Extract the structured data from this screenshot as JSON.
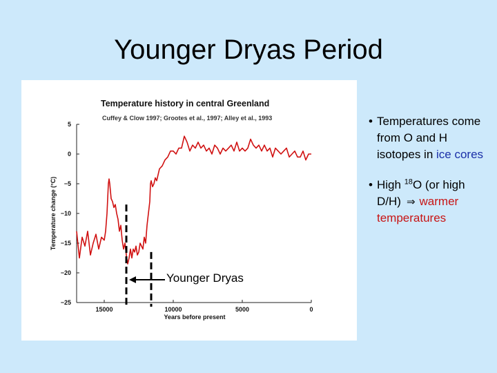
{
  "slide": {
    "title": "Younger Dryas Period"
  },
  "bullets": {
    "b1_pre": "Temperatures come from O and H isotopes in ",
    "b1_highlight": "ice cores",
    "b2_pre": "High ",
    "b2_sup": "18",
    "b2_mid": "O (or high D/H)",
    "b2_symbol": "⇒",
    "b2_highlight": "warmer temperatures",
    "bullet_char": "•"
  },
  "annotation": {
    "label": "Younger Dryas"
  },
  "colors": {
    "background": "#cde9fb",
    "series": "#d01010",
    "highlight_blue": "#1a2fa8",
    "highlight_red": "#c81414"
  },
  "chart_data": {
    "type": "line",
    "title": "Temperature history in central Greenland",
    "subtitle": "Cuffey & Clow 1997; Grootes et al., 1997; Alley et al., 1993",
    "xlabel": "Years before present",
    "ylabel": "Temperature change (°C)",
    "xlim": [
      17000,
      0
    ],
    "ylim": [
      -25,
      5
    ],
    "xticks": [
      15000,
      10000,
      5000,
      0
    ],
    "xtick_labels": [
      "15000",
      "10000",
      "5000",
      "0"
    ],
    "yticks": [
      5,
      0,
      -5,
      -10,
      -15,
      -20,
      -25
    ],
    "ytick_labels": [
      "5",
      "0",
      "−5",
      "−10",
      "−15",
      "−20",
      "−25"
    ],
    "grid": false,
    "younger_dryas_span": [
      13400,
      11600
    ],
    "x": [
      17000,
      16800,
      16600,
      16400,
      16200,
      16000,
      15800,
      15600,
      15400,
      15200,
      15000,
      14900,
      14800,
      14700,
      14650,
      14600,
      14500,
      14400,
      14300,
      14200,
      14100,
      14000,
      13900,
      13800,
      13700,
      13600,
      13500,
      13400,
      13300,
      13200,
      13100,
      13000,
      12900,
      12800,
      12700,
      12600,
      12500,
      12400,
      12300,
      12200,
      12100,
      12000,
      11900,
      11800,
      11700,
      11650,
      11600,
      11500,
      11400,
      11300,
      11200,
      11100,
      11000,
      10800,
      10600,
      10400,
      10200,
      10000,
      9800,
      9600,
      9400,
      9200,
      9000,
      8800,
      8600,
      8400,
      8200,
      8000,
      7800,
      7600,
      7400,
      7200,
      7000,
      6800,
      6600,
      6400,
      6200,
      6000,
      5800,
      5600,
      5400,
      5200,
      5000,
      4800,
      4600,
      4400,
      4200,
      4000,
      3800,
      3600,
      3400,
      3200,
      3000,
      2800,
      2600,
      2400,
      2200,
      2000,
      1800,
      1600,
      1400,
      1200,
      1000,
      800,
      600,
      400,
      200,
      0
    ],
    "y": [
      -13,
      -17.5,
      -14,
      -15.5,
      -13,
      -17,
      -15,
      -13.5,
      -16,
      -14,
      -14.5,
      -13,
      -10,
      -5,
      -4.2,
      -5,
      -7.5,
      -8,
      -9,
      -8.5,
      -10,
      -11,
      -13,
      -12,
      -14.5,
      -16,
      -15,
      -17,
      -18.5,
      -17.5,
      -16,
      -17.5,
      -16,
      -16.5,
      -15.5,
      -17,
      -16.5,
      -15,
      -15.5,
      -16,
      -14,
      -15,
      -12,
      -10,
      -8,
      -5,
      -4.5,
      -5.5,
      -5,
      -4,
      -4.5,
      -3.5,
      -2.5,
      -2,
      -1,
      -0.5,
      0.5,
      0.5,
      0,
      1,
      1,
      3,
      2,
      0.5,
      1.5,
      1,
      2,
      1,
      1.5,
      0.5,
      1,
      0,
      1.5,
      1,
      0,
      1,
      0.5,
      1,
      1.5,
      0.5,
      2,
      0.5,
      1,
      0.5,
      1,
      2.5,
      1.5,
      1,
      1.5,
      0.5,
      1.5,
      0.5,
      1,
      -0.5,
      1,
      0.5,
      0,
      0.5,
      1,
      -0.5,
      0,
      0.5,
      -0.5,
      -0.5,
      0.5,
      -1,
      0,
      0
    ]
  }
}
